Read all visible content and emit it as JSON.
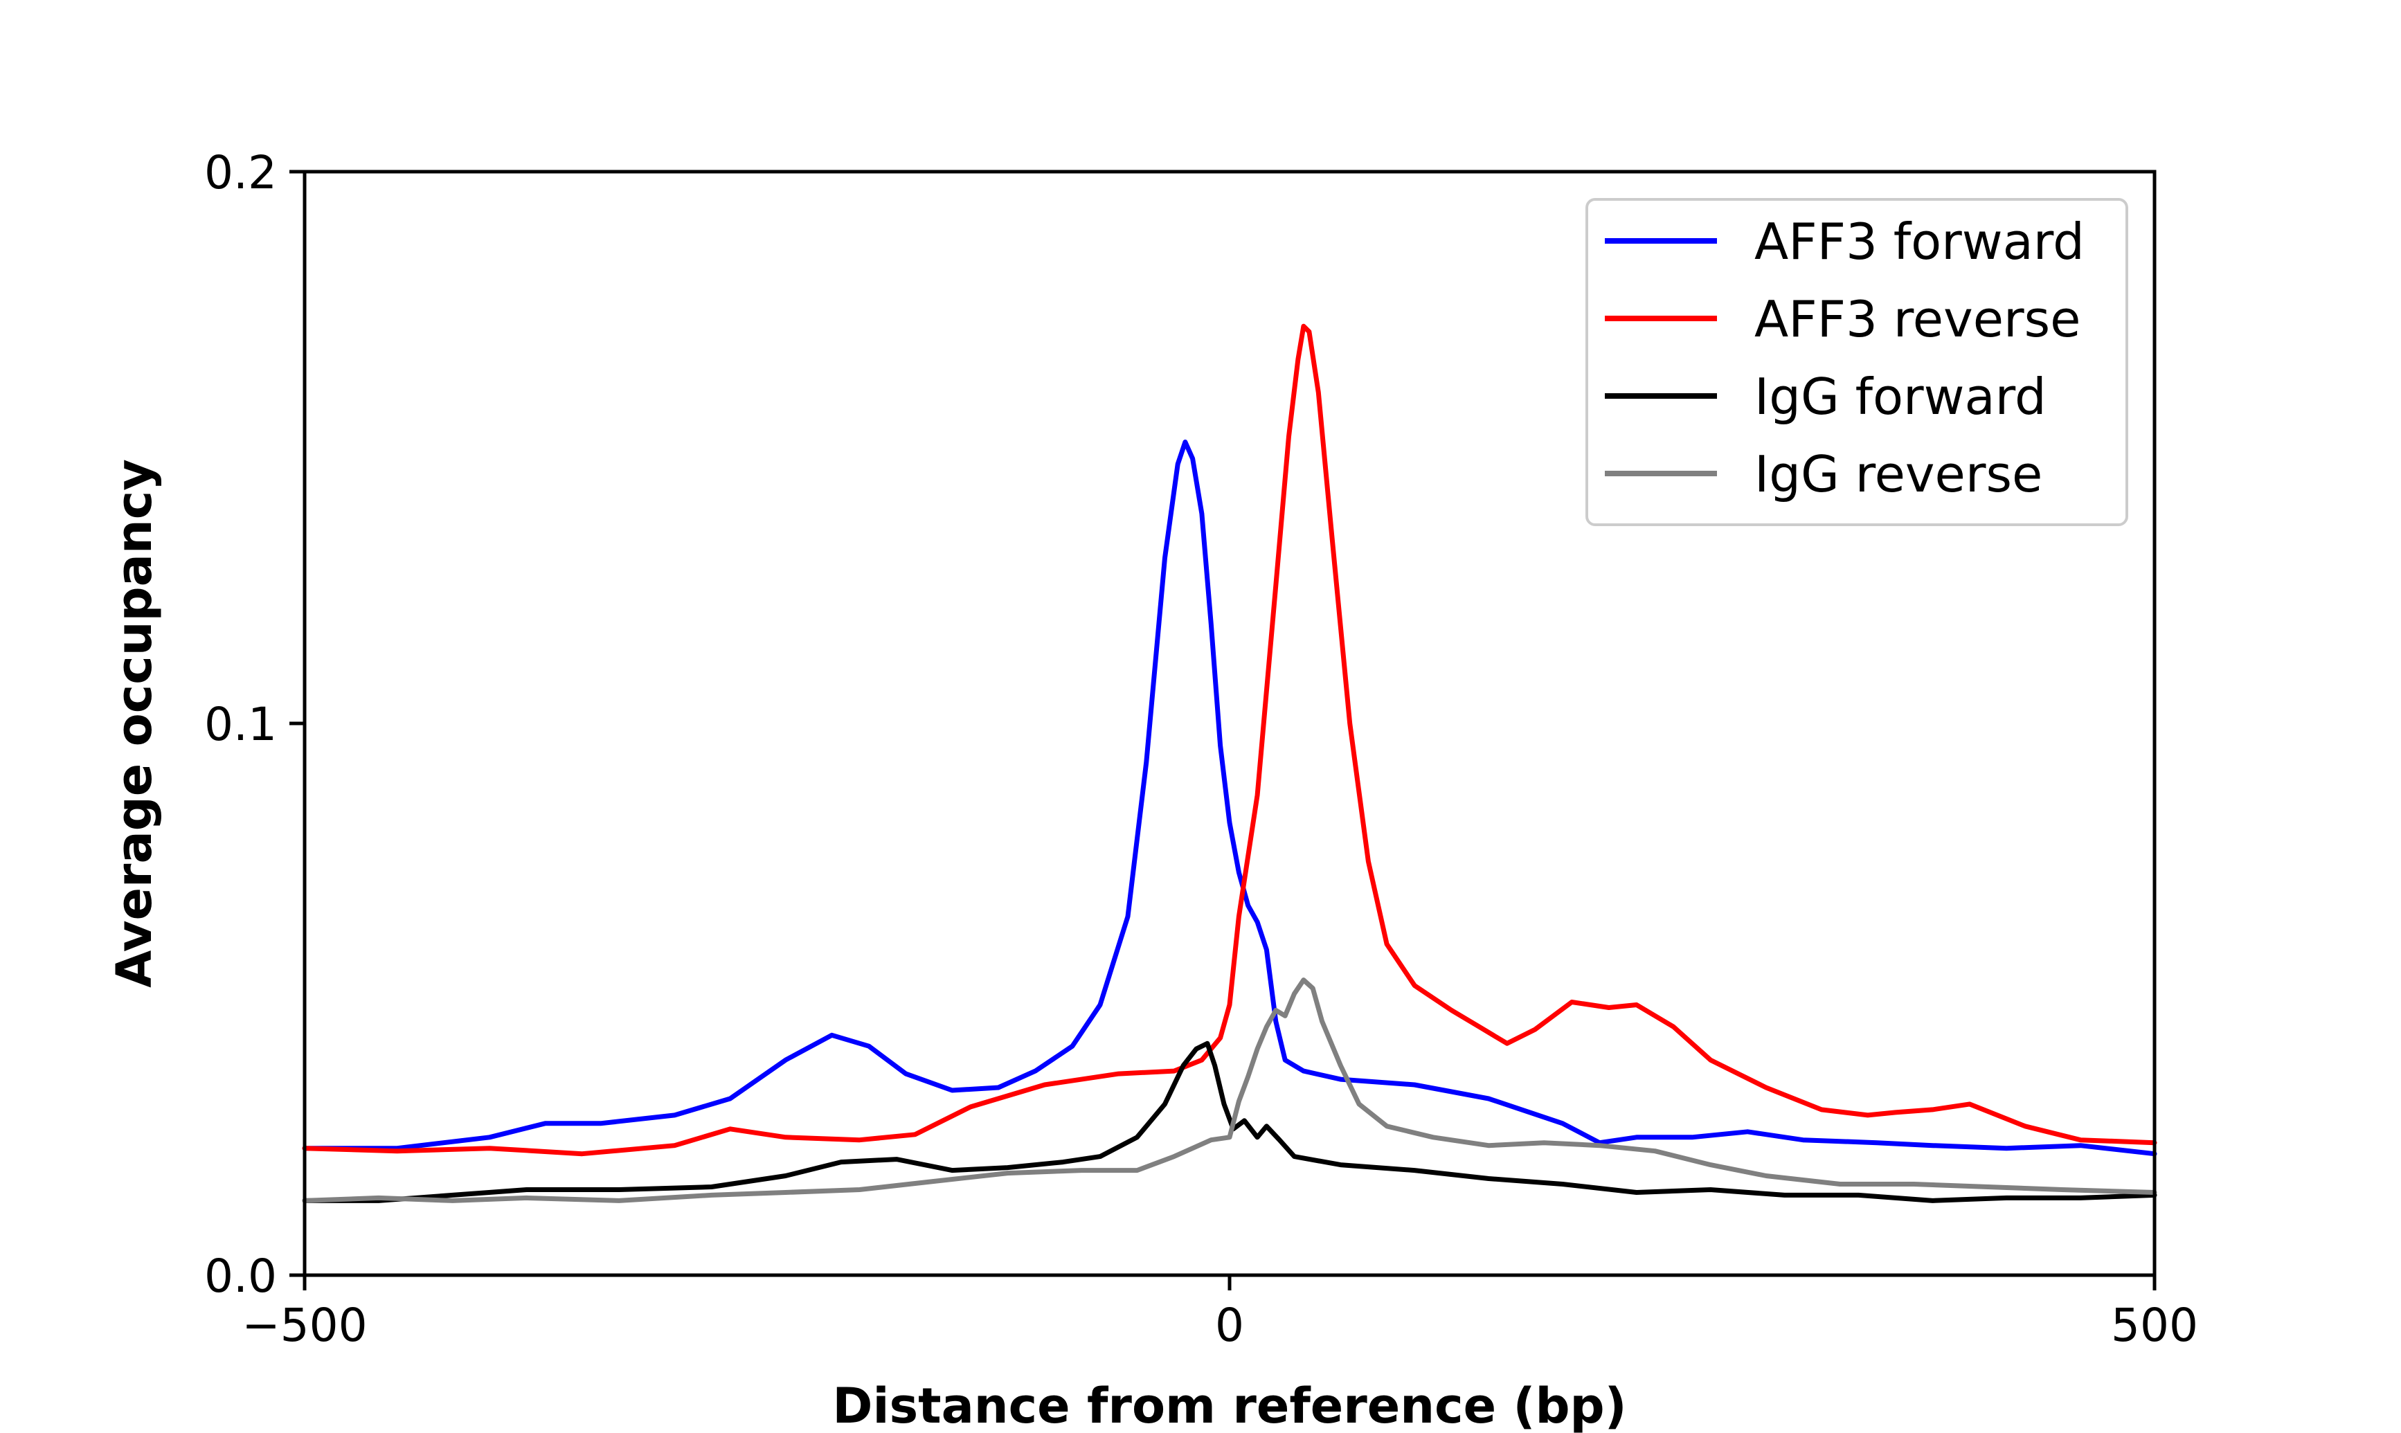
{
  "chart_data": {
    "type": "line",
    "title": "",
    "xlabel": "Distance from reference (bp)",
    "ylabel": "Average occupancy",
    "xlim": [
      -500,
      500
    ],
    "ylim": [
      0.0,
      0.2
    ],
    "xticks": [
      {
        "value": -500,
        "label": "−500"
      },
      {
        "value": 0,
        "label": "0"
      },
      {
        "value": 500,
        "label": "500"
      }
    ],
    "yticks": [
      {
        "value": 0.0,
        "label": "0.0"
      },
      {
        "value": 0.1,
        "label": "0.1"
      },
      {
        "value": 0.2,
        "label": "0.2"
      }
    ],
    "grid": false,
    "legend_position": "top-right",
    "series": [
      {
        "name": "AFF3 forward",
        "color": "#0000ff",
        "points": [
          [
            -500,
            0.023
          ],
          [
            -450,
            0.023
          ],
          [
            -400,
            0.025
          ],
          [
            -370,
            0.0275
          ],
          [
            -340,
            0.0275
          ],
          [
            -300,
            0.029
          ],
          [
            -270,
            0.032
          ],
          [
            -240,
            0.039
          ],
          [
            -215,
            0.0435
          ],
          [
            -195,
            0.0415
          ],
          [
            -175,
            0.0365
          ],
          [
            -150,
            0.0335
          ],
          [
            -125,
            0.034
          ],
          [
            -105,
            0.037
          ],
          [
            -85,
            0.0415
          ],
          [
            -70,
            0.049
          ],
          [
            -55,
            0.065
          ],
          [
            -45,
            0.093
          ],
          [
            -35,
            0.13
          ],
          [
            -28,
            0.147
          ],
          [
            -24,
            0.151
          ],
          [
            -20,
            0.148
          ],
          [
            -15,
            0.138
          ],
          [
            -10,
            0.118
          ],
          [
            -5,
            0.096
          ],
          [
            0,
            0.082
          ],
          [
            5,
            0.073
          ],
          [
            10,
            0.067
          ],
          [
            15,
            0.064
          ],
          [
            20,
            0.059
          ],
          [
            25,
            0.046
          ],
          [
            30,
            0.039
          ],
          [
            40,
            0.037
          ],
          [
            60,
            0.0355
          ],
          [
            100,
            0.0345
          ],
          [
            140,
            0.032
          ],
          [
            180,
            0.0275
          ],
          [
            200,
            0.024
          ],
          [
            220,
            0.025
          ],
          [
            250,
            0.025
          ],
          [
            280,
            0.026
          ],
          [
            310,
            0.0245
          ],
          [
            350,
            0.024
          ],
          [
            380,
            0.0235
          ],
          [
            420,
            0.023
          ],
          [
            460,
            0.0235
          ],
          [
            500,
            0.022
          ]
        ]
      },
      {
        "name": "AFF3 reverse",
        "color": "#ff0000",
        "points": [
          [
            -500,
            0.023
          ],
          [
            -450,
            0.0225
          ],
          [
            -400,
            0.023
          ],
          [
            -350,
            0.022
          ],
          [
            -300,
            0.0235
          ],
          [
            -270,
            0.0265
          ],
          [
            -240,
            0.025
          ],
          [
            -200,
            0.0245
          ],
          [
            -170,
            0.0255
          ],
          [
            -140,
            0.0305
          ],
          [
            -100,
            0.0345
          ],
          [
            -60,
            0.0365
          ],
          [
            -30,
            0.037
          ],
          [
            -15,
            0.039
          ],
          [
            -5,
            0.043
          ],
          [
            0,
            0.049
          ],
          [
            5,
            0.065
          ],
          [
            15,
            0.087
          ],
          [
            25,
            0.125
          ],
          [
            32,
            0.152
          ],
          [
            37,
            0.166
          ],
          [
            40,
            0.172
          ],
          [
            43,
            0.171
          ],
          [
            48,
            0.16
          ],
          [
            55,
            0.135
          ],
          [
            65,
            0.1
          ],
          [
            75,
            0.075
          ],
          [
            85,
            0.06
          ],
          [
            100,
            0.0525
          ],
          [
            120,
            0.048
          ],
          [
            135,
            0.045
          ],
          [
            150,
            0.042
          ],
          [
            165,
            0.0445
          ],
          [
            185,
            0.0495
          ],
          [
            205,
            0.0485
          ],
          [
            220,
            0.049
          ],
          [
            240,
            0.045
          ],
          [
            260,
            0.039
          ],
          [
            290,
            0.034
          ],
          [
            320,
            0.03
          ],
          [
            345,
            0.029
          ],
          [
            360,
            0.0295
          ],
          [
            380,
            0.03
          ],
          [
            400,
            0.031
          ],
          [
            430,
            0.027
          ],
          [
            460,
            0.0245
          ],
          [
            500,
            0.024
          ]
        ]
      },
      {
        "name": "IgG forward",
        "color": "#000000",
        "points": [
          [
            -500,
            0.0135
          ],
          [
            -460,
            0.0135
          ],
          [
            -420,
            0.0145
          ],
          [
            -380,
            0.0155
          ],
          [
            -330,
            0.0155
          ],
          [
            -280,
            0.016
          ],
          [
            -240,
            0.018
          ],
          [
            -210,
            0.0205
          ],
          [
            -180,
            0.021
          ],
          [
            -150,
            0.019
          ],
          [
            -120,
            0.0195
          ],
          [
            -90,
            0.0205
          ],
          [
            -70,
            0.0215
          ],
          [
            -50,
            0.025
          ],
          [
            -35,
            0.031
          ],
          [
            -25,
            0.038
          ],
          [
            -18,
            0.041
          ],
          [
            -12,
            0.042
          ],
          [
            -8,
            0.038
          ],
          [
            -3,
            0.031
          ],
          [
            2,
            0.0265
          ],
          [
            8,
            0.028
          ],
          [
            15,
            0.025
          ],
          [
            20,
            0.027
          ],
          [
            27,
            0.0245
          ],
          [
            35,
            0.0215
          ],
          [
            60,
            0.02
          ],
          [
            100,
            0.019
          ],
          [
            140,
            0.0175
          ],
          [
            180,
            0.0165
          ],
          [
            220,
            0.015
          ],
          [
            260,
            0.0155
          ],
          [
            300,
            0.0145
          ],
          [
            340,
            0.0145
          ],
          [
            380,
            0.0135
          ],
          [
            420,
            0.014
          ],
          [
            460,
            0.014
          ],
          [
            500,
            0.0145
          ]
        ]
      },
      {
        "name": "IgG reverse",
        "color": "#808080",
        "points": [
          [
            -500,
            0.0135
          ],
          [
            -460,
            0.014
          ],
          [
            -420,
            0.0135
          ],
          [
            -380,
            0.014
          ],
          [
            -330,
            0.0135
          ],
          [
            -280,
            0.0145
          ],
          [
            -240,
            0.015
          ],
          [
            -200,
            0.0155
          ],
          [
            -160,
            0.017
          ],
          [
            -120,
            0.0185
          ],
          [
            -80,
            0.019
          ],
          [
            -50,
            0.019
          ],
          [
            -30,
            0.0215
          ],
          [
            -10,
            0.0245
          ],
          [
            0,
            0.025
          ],
          [
            5,
            0.0315
          ],
          [
            10,
            0.036
          ],
          [
            15,
            0.041
          ],
          [
            20,
            0.045
          ],
          [
            25,
            0.048
          ],
          [
            30,
            0.047
          ],
          [
            35,
            0.051
          ],
          [
            40,
            0.0535
          ],
          [
            45,
            0.052
          ],
          [
            50,
            0.046
          ],
          [
            60,
            0.038
          ],
          [
            70,
            0.031
          ],
          [
            85,
            0.027
          ],
          [
            110,
            0.025
          ],
          [
            140,
            0.0235
          ],
          [
            170,
            0.024
          ],
          [
            200,
            0.0235
          ],
          [
            230,
            0.0225
          ],
          [
            260,
            0.02
          ],
          [
            290,
            0.018
          ],
          [
            330,
            0.0165
          ],
          [
            370,
            0.0165
          ],
          [
            410,
            0.016
          ],
          [
            450,
            0.0155
          ],
          [
            500,
            0.015
          ]
        ]
      }
    ]
  }
}
